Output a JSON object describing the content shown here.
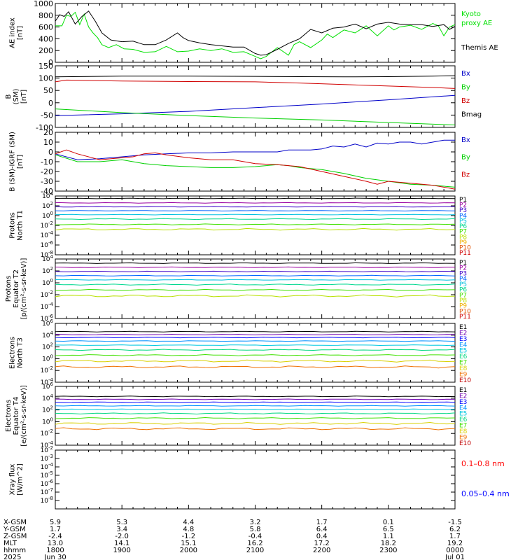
{
  "colors": {
    "black": "#000000",
    "red": "#d00000",
    "green": "#00d000",
    "blue": "#0000c8",
    "ae_kyoto": "#00e000",
    "ae_themis": "#000000",
    "p_channels": [
      "#000000",
      "#9b00a0",
      "#3c00c8",
      "#0064ff",
      "#00c0e0",
      "#00d890",
      "#40e000",
      "#b8e000",
      "#f0b000",
      "#e05000",
      "#d00000"
    ],
    "e_channels": [
      "#000000",
      "#7000b0",
      "#0000ff",
      "#0090ff",
      "#00c8e0",
      "#00d880",
      "#40e000",
      "#d8d000",
      "#f07000",
      "#c00000"
    ],
    "xray_long": "#ff0000",
    "xray_short": "#0000ff"
  },
  "time_axis": {
    "major_ticks": [
      0,
      60,
      120,
      180,
      240,
      300,
      360
    ],
    "minor_per_major": 6,
    "range": [
      0,
      360
    ]
  },
  "ephemeris": {
    "row_labels": [
      "X-GSM",
      "Y-GSM",
      "Z-GSM",
      "MLT",
      "hhmm",
      "2025"
    ],
    "columns": [
      {
        "t": 0,
        "values": [
          "5.9",
          "1.7",
          "-2.4",
          "13.0",
          "1800",
          "Jun 30"
        ]
      },
      {
        "t": 60,
        "values": [
          "5.3",
          "3.4",
          "-2.0",
          "14.1",
          "1900",
          ""
        ]
      },
      {
        "t": 120,
        "values": [
          "4.4",
          "4.8",
          "-1.2",
          "15.1",
          "2000",
          ""
        ]
      },
      {
        "t": 180,
        "values": [
          "3.2",
          "5.8",
          "-0.4",
          "16.2",
          "2100",
          ""
        ]
      },
      {
        "t": 240,
        "values": [
          "1.7",
          "6.4",
          "0.4",
          "17.2",
          "2200",
          ""
        ]
      },
      {
        "t": 300,
        "values": [
          "0.1",
          "6.5",
          "1.1",
          "18.2",
          "2300",
          ""
        ]
      },
      {
        "t": 360,
        "values": [
          "-1.5",
          "6.2",
          "1.7",
          "19.2",
          "0000",
          "Jul 01"
        ]
      }
    ]
  },
  "chart_data": [
    {
      "id": "ae",
      "type": "line",
      "ylabel": [
        "AE index",
        "[nT]"
      ],
      "ylim": [
        0,
        1000
      ],
      "yticks": [
        0,
        200,
        400,
        600,
        800,
        1000
      ],
      "ytick_labels": [
        "0",
        "200",
        "400",
        "600",
        "800",
        "1000"
      ],
      "legend": [
        {
          "text": "Kyoto",
          "color": "#00e000"
        },
        {
          "text": "proxy AE",
          "color": "#00e000"
        },
        {
          "text": "Themis AE",
          "color": "#000000"
        }
      ],
      "series": [
        {
          "name": "Kyoto proxy AE",
          "color": "#00e000",
          "x": [
            0,
            6,
            10,
            14,
            18,
            22,
            26,
            30,
            34,
            38,
            42,
            48,
            55,
            62,
            70,
            80,
            90,
            100,
            110,
            120,
            130,
            140,
            150,
            160,
            170,
            180,
            185,
            190,
            200,
            210,
            215,
            220,
            230,
            240,
            245,
            250,
            260,
            270,
            280,
            290,
            300,
            305,
            310,
            320,
            330,
            340,
            345,
            350,
            355,
            360
          ],
          "y": [
            620,
            620,
            800,
            780,
            850,
            640,
            820,
            600,
            500,
            420,
            300,
            250,
            300,
            230,
            220,
            170,
            180,
            270,
            180,
            190,
            230,
            200,
            230,
            170,
            180,
            100,
            60,
            100,
            250,
            120,
            300,
            350,
            250,
            380,
            480,
            420,
            550,
            500,
            620,
            450,
            620,
            550,
            600,
            630,
            560,
            660,
            620,
            450,
            600,
            640
          ]
        },
        {
          "name": "Themis AE",
          "color": "#000000",
          "x": [
            0,
            4,
            8,
            12,
            18,
            24,
            30,
            36,
            42,
            50,
            60,
            70,
            80,
            90,
            100,
            110,
            115,
            120,
            130,
            140,
            150,
            160,
            170,
            180,
            185,
            190,
            200,
            210,
            220,
            230,
            240,
            250,
            260,
            270,
            280,
            290,
            300,
            310,
            320,
            330,
            340,
            350,
            355,
            360
          ],
          "y": [
            700,
            810,
            780,
            860,
            650,
            780,
            870,
            700,
            500,
            380,
            350,
            360,
            300,
            300,
            380,
            500,
            420,
            370,
            330,
            300,
            280,
            260,
            260,
            150,
            120,
            130,
            220,
            320,
            400,
            560,
            500,
            580,
            600,
            650,
            570,
            650,
            680,
            650,
            640,
            640,
            610,
            640,
            560,
            610
          ]
        }
      ]
    },
    {
      "id": "bsm",
      "type": "line",
      "ylabel": [
        "B",
        "(SM)",
        "[nT]"
      ],
      "ylim": [
        -100,
        150
      ],
      "yticks": [
        -100,
        -50,
        0,
        50,
        100,
        150
      ],
      "ytick_labels": [
        "-100",
        "-50",
        "0",
        "50",
        "100",
        "150"
      ],
      "legend": [
        {
          "text": "Bx",
          "color": "#0000c8"
        },
        {
          "text": "By",
          "color": "#00d000"
        },
        {
          "text": "Bz",
          "color": "#d00000"
        },
        {
          "text": "Bmag",
          "color": "#000000"
        }
      ],
      "series": [
        {
          "name": "Bx",
          "color": "#0000c8",
          "x": [
            0,
            60,
            120,
            180,
            240,
            300,
            360
          ],
          "y": [
            -52,
            -45,
            -35,
            -20,
            -5,
            12,
            30
          ]
        },
        {
          "name": "By",
          "color": "#00d000",
          "x": [
            0,
            60,
            120,
            180,
            240,
            300,
            360
          ],
          "y": [
            -25,
            -40,
            -52,
            -62,
            -70,
            -80,
            -90
          ]
        },
        {
          "name": "Bz",
          "color": "#d00000",
          "x": [
            0,
            10,
            60,
            120,
            180,
            220,
            260,
            300,
            340,
            360
          ],
          "y": [
            85,
            92,
            88,
            86,
            85,
            80,
            74,
            68,
            62,
            58
          ]
        },
        {
          "name": "Bmag",
          "color": "#000000",
          "x": [
            0,
            60,
            120,
            180,
            220,
            260,
            300,
            340,
            360
          ],
          "y": [
            105,
            108,
            108,
            107,
            106,
            105,
            106,
            108,
            110
          ]
        }
      ]
    },
    {
      "id": "bsmigrf",
      "type": "line",
      "ylabel": [
        "B (SM)-IGRF (SM)",
        "[nT]"
      ],
      "ylim": [
        -40,
        20
      ],
      "yticks": [
        -40,
        -30,
        -20,
        -10,
        0,
        10,
        20
      ],
      "ytick_labels": [
        "-40",
        "-30",
        "-20",
        "-10",
        "0",
        "10",
        "20"
      ],
      "legend": [
        {
          "text": "Bx",
          "color": "#0000c8"
        },
        {
          "text": "By",
          "color": "#00d000"
        },
        {
          "text": "Bz",
          "color": "#d00000"
        }
      ],
      "series": [
        {
          "name": "Bx",
          "color": "#0000c8",
          "x": [
            0,
            20,
            40,
            60,
            80,
            100,
            120,
            140,
            160,
            180,
            200,
            210,
            220,
            230,
            240,
            250,
            260,
            270,
            280,
            290,
            300,
            310,
            320,
            330,
            340,
            350,
            360
          ],
          "y": [
            -2,
            -8,
            -7,
            -5,
            -3,
            -2,
            -1,
            -1,
            0,
            0,
            0,
            2,
            2,
            2,
            3,
            6,
            5,
            8,
            5,
            9,
            8,
            10,
            10,
            8,
            10,
            12,
            12
          ]
        },
        {
          "name": "By",
          "color": "#00d000",
          "x": [
            0,
            20,
            40,
            60,
            80,
            100,
            120,
            140,
            160,
            180,
            190,
            200,
            210,
            220,
            240,
            260,
            280,
            300,
            320,
            340,
            360
          ],
          "y": [
            -3,
            -10,
            -10,
            -8,
            -12,
            -14,
            -15,
            -16,
            -16,
            -15,
            -14,
            -13,
            -14,
            -16,
            -18,
            -22,
            -27,
            -30,
            -33,
            -34,
            -36
          ]
        },
        {
          "name": "Bz",
          "color": "#d00000",
          "x": [
            0,
            10,
            20,
            40,
            60,
            70,
            80,
            90,
            100,
            120,
            140,
            160,
            180,
            200,
            220,
            240,
            260,
            280,
            290,
            300,
            320,
            340,
            360
          ],
          "y": [
            -2,
            2,
            -2,
            -8,
            -6,
            -5,
            -2,
            -1,
            -3,
            -6,
            -8,
            -8,
            -12,
            -13,
            -15,
            -20,
            -25,
            -30,
            -33,
            -30,
            -32,
            -34,
            -38
          ]
        }
      ]
    },
    {
      "id": "p1",
      "type": "line",
      "ylabel": [
        "Protons",
        "North T1"
      ],
      "ylog": true,
      "ylim_exp": [
        -8,
        4
      ],
      "ytick_exps": [
        -8,
        -6,
        -4,
        -2,
        0,
        2,
        4
      ],
      "ytick_labels": [
        "10-8",
        "10-6",
        "10-4",
        "10-2",
        "100",
        "102",
        "104"
      ],
      "channels": [
        "P1",
        "P2",
        "P3",
        "P4",
        "P5",
        "P6",
        "P7",
        "P8",
        "P9",
        "P10",
        "P11"
      ],
      "levels": [
        3.5,
        2.6,
        1.8,
        1.0,
        0.2,
        -0.7,
        -1.8,
        -2.8,
        -3.8,
        -5.5,
        -6.5
      ],
      "visible": [
        true,
        true,
        true,
        true,
        true,
        true,
        true,
        true,
        false,
        false,
        false
      ]
    },
    {
      "id": "p2",
      "type": "line",
      "ylabel": [
        "Protons",
        "Equator T2",
        "[p/(cm²-s-sr-keV)]"
      ],
      "ylog": true,
      "ylim_exp": [
        -6,
        4
      ],
      "ytick_exps": [
        -6,
        -4,
        -2,
        0,
        2,
        4
      ],
      "ytick_labels": [
        "10-6",
        "10-4",
        "10-2",
        "100",
        "102",
        "104"
      ],
      "channels": [
        "P1",
        "P2",
        "P3",
        "P4",
        "P5",
        "P6",
        "P7",
        "P8",
        "P9",
        "P10",
        "P11"
      ],
      "levels": [
        3.3,
        2.6,
        1.9,
        1.2,
        0.5,
        -0.3,
        -1.2,
        -2.2,
        -3.2,
        -4.5,
        -5.5
      ],
      "visible": [
        true,
        true,
        true,
        true,
        true,
        true,
        true,
        true,
        false,
        false,
        false
      ]
    },
    {
      "id": "e3",
      "type": "line",
      "ylabel": [
        "Electrons",
        "North T3"
      ],
      "ylog": true,
      "ylim_exp": [
        -4,
        6
      ],
      "ytick_exps": [
        -4,
        -2,
        0,
        2,
        4,
        6
      ],
      "ytick_labels": [
        "10-4",
        "10-2",
        "100",
        "102",
        "104",
        "106"
      ],
      "channels": [
        "E1",
        "E2",
        "E3",
        "E4",
        "E5",
        "E6",
        "E7",
        "E8",
        "E9",
        "E10"
      ],
      "levels": [
        4.6,
        4.1,
        3.6,
        3.0,
        2.3,
        1.5,
        0.6,
        -0.4,
        -1.4,
        -2.5
      ],
      "visible": [
        true,
        true,
        true,
        true,
        true,
        true,
        true,
        true,
        true,
        false
      ]
    },
    {
      "id": "e4",
      "type": "line",
      "ylabel": [
        "Electrons",
        "Equator T4",
        "[e/(cm²-s-sr-keV)]"
      ],
      "ylog": true,
      "ylim_exp": [
        -4,
        6
      ],
      "ytick_exps": [
        -4,
        -2,
        0,
        2,
        4,
        6
      ],
      "ytick_labels": [
        "10-4",
        "10-2",
        "100",
        "102",
        "104",
        "106"
      ],
      "channels": [
        "E1",
        "E2",
        "E3",
        "E4",
        "E5",
        "E6",
        "E7",
        "E8",
        "E9",
        "E10"
      ],
      "levels": [
        4.3,
        3.8,
        3.3,
        2.7,
        2.1,
        1.4,
        0.6,
        -0.3,
        -1.2,
        -2.1
      ],
      "visible": [
        true,
        true,
        true,
        true,
        true,
        true,
        true,
        true,
        true,
        false
      ]
    },
    {
      "id": "xray",
      "type": "line",
      "ylabel": [
        "Xray flux",
        "[W/m^2]"
      ],
      "ylog": true,
      "ylim_exp": [
        -9,
        -2
      ],
      "ytick_exps": [
        -8,
        -7,
        -6,
        -5,
        -4,
        -3,
        -2
      ],
      "ytick_labels": [
        "10-8",
        "10-7",
        "10-6",
        "10-5",
        "10-4",
        "10-3",
        "10-2"
      ],
      "legend": [
        {
          "text": "0.1–0.8 nm",
          "color": "#ff0000"
        },
        {
          "text": "0.05–0.4 nm",
          "color": "#0000ff"
        }
      ],
      "series": []
    }
  ]
}
